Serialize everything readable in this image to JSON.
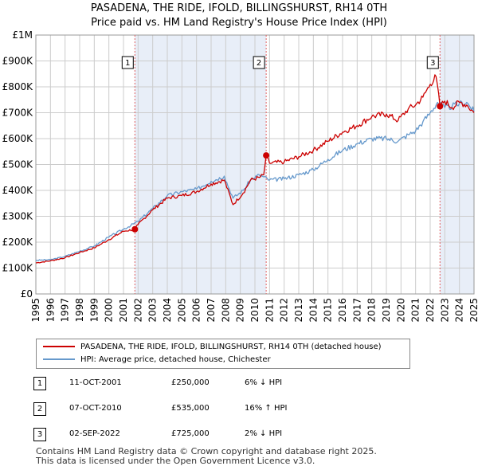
{
  "title_line1": "PASADENA, THE RIDE, IFOLD, BILLINGSHURST, RH14 0TH",
  "title_line2": "Price paid vs. HM Land Registry's House Price Index (HPI)",
  "legend": {
    "property_label": "PASADENA, THE RIDE, IFOLD, BILLINGSHURST, RH14 0TH (detached house)",
    "hpi_label": "HPI: Average price, detached house, Chichester"
  },
  "sales": [
    {
      "num": "1",
      "date": "11-OCT-2001",
      "price": "£250,000",
      "hpi": "6% ↓ HPI"
    },
    {
      "num": "2",
      "date": "07-OCT-2010",
      "price": "£535,000",
      "hpi": "16% ↑ HPI"
    },
    {
      "num": "3",
      "date": "02-SEP-2022",
      "price": "£725,000",
      "hpi": "2% ↓ HPI"
    }
  ],
  "footer_line1": "Contains HM Land Registry data © Crown copyright and database right 2025.",
  "footer_line2": "This data is licensed under the Open Government Licence v3.0.",
  "colors": {
    "property": "#cc0000",
    "hpi": "#6699cc",
    "shade": "#e8eef8",
    "grid": "#cccccc",
    "marker_line": "#e06060"
  },
  "chart_data": {
    "type": "line",
    "xlim": [
      1995,
      2025
    ],
    "ylim": [
      0,
      1000000
    ],
    "x_ticks": [
      "1995",
      "1996",
      "1997",
      "1998",
      "1999",
      "2000",
      "2001",
      "2002",
      "2003",
      "2004",
      "2005",
      "2006",
      "2007",
      "2008",
      "2009",
      "2010",
      "2011",
      "2012",
      "2013",
      "2014",
      "2015",
      "2016",
      "2017",
      "2018",
      "2019",
      "2020",
      "2021",
      "2022",
      "2023",
      "2024",
      "2025"
    ],
    "y_ticks": [
      {
        "value": 0,
        "label": "£0"
      },
      {
        "value": 100000,
        "label": "£100K"
      },
      {
        "value": 200000,
        "label": "£200K"
      },
      {
        "value": 300000,
        "label": "£300K"
      },
      {
        "value": 400000,
        "label": "£400K"
      },
      {
        "value": 500000,
        "label": "£500K"
      },
      {
        "value": 600000,
        "label": "£600K"
      },
      {
        "value": 700000,
        "label": "£700K"
      },
      {
        "value": 800000,
        "label": "£800K"
      },
      {
        "value": 900000,
        "label": "£900K"
      },
      {
        "value": 1000000,
        "label": "£1M"
      }
    ],
    "shaded_ranges": [
      [
        2001.78,
        2010.77
      ],
      [
        2022.67,
        2025
      ]
    ],
    "annotations": [
      {
        "label": "1",
        "x": 2001.78,
        "y": 250000
      },
      {
        "label": "2",
        "x": 2010.77,
        "y": 535000
      },
      {
        "label": "3",
        "x": 2022.67,
        "y": 725000
      }
    ],
    "series": [
      {
        "name": "PASADENA, THE RIDE, IFOLD, BILLINGSHURST, RH14 0TH (detached house)",
        "x": [
          1995,
          1996,
          1997,
          1998,
          1999,
          2000,
          2001,
          2001.78,
          2002,
          2003,
          2004,
          2005,
          2006,
          2007,
          2007.9,
          2008.5,
          2009.2,
          2009.7,
          2010.3,
          2010.6,
          2010.77,
          2011,
          2012,
          2013,
          2014,
          2015,
          2016,
          2017,
          2018,
          2019,
          2019.8,
          2020.5,
          2021,
          2021.5,
          2022,
          2022.4,
          2022.67,
          2023,
          2023.5,
          2024,
          2024.5,
          2025
        ],
        "y": [
          120000,
          128000,
          140000,
          160000,
          178000,
          210000,
          242000,
          250000,
          268000,
          325000,
          370000,
          380000,
          395000,
          425000,
          440000,
          345000,
          390000,
          440000,
          450000,
          460000,
          535000,
          505000,
          510000,
          530000,
          555000,
          590000,
          625000,
          650000,
          685000,
          695000,
          670000,
          715000,
          730000,
          760000,
          810000,
          840000,
          725000,
          745000,
          720000,
          740000,
          730000,
          700000
        ]
      },
      {
        "name": "HPI: Average price, detached house, Chichester",
        "x": [
          1995,
          1996,
          1997,
          1998,
          1999,
          2000,
          2001,
          2002,
          2003,
          2004,
          2005,
          2006,
          2007,
          2007.9,
          2008.5,
          2009.2,
          2009.7,
          2010.3,
          2011,
          2012,
          2013,
          2014,
          2015,
          2016,
          2017,
          2018,
          2019,
          2019.8,
          2020.5,
          2021,
          2021.5,
          2022,
          2022.5,
          2023,
          2023.5,
          2024,
          2024.5,
          2025
        ],
        "y": [
          130000,
          132000,
          145000,
          165000,
          185000,
          220000,
          250000,
          280000,
          330000,
          380000,
          395000,
          405000,
          435000,
          455000,
          370000,
          400000,
          440000,
          460000,
          440000,
          445000,
          460000,
          480000,
          520000,
          555000,
          580000,
          600000,
          600000,
          590000,
          615000,
          630000,
          665000,
          700000,
          740000,
          720000,
          725000,
          735000,
          740000,
          705000
        ]
      }
    ]
  }
}
